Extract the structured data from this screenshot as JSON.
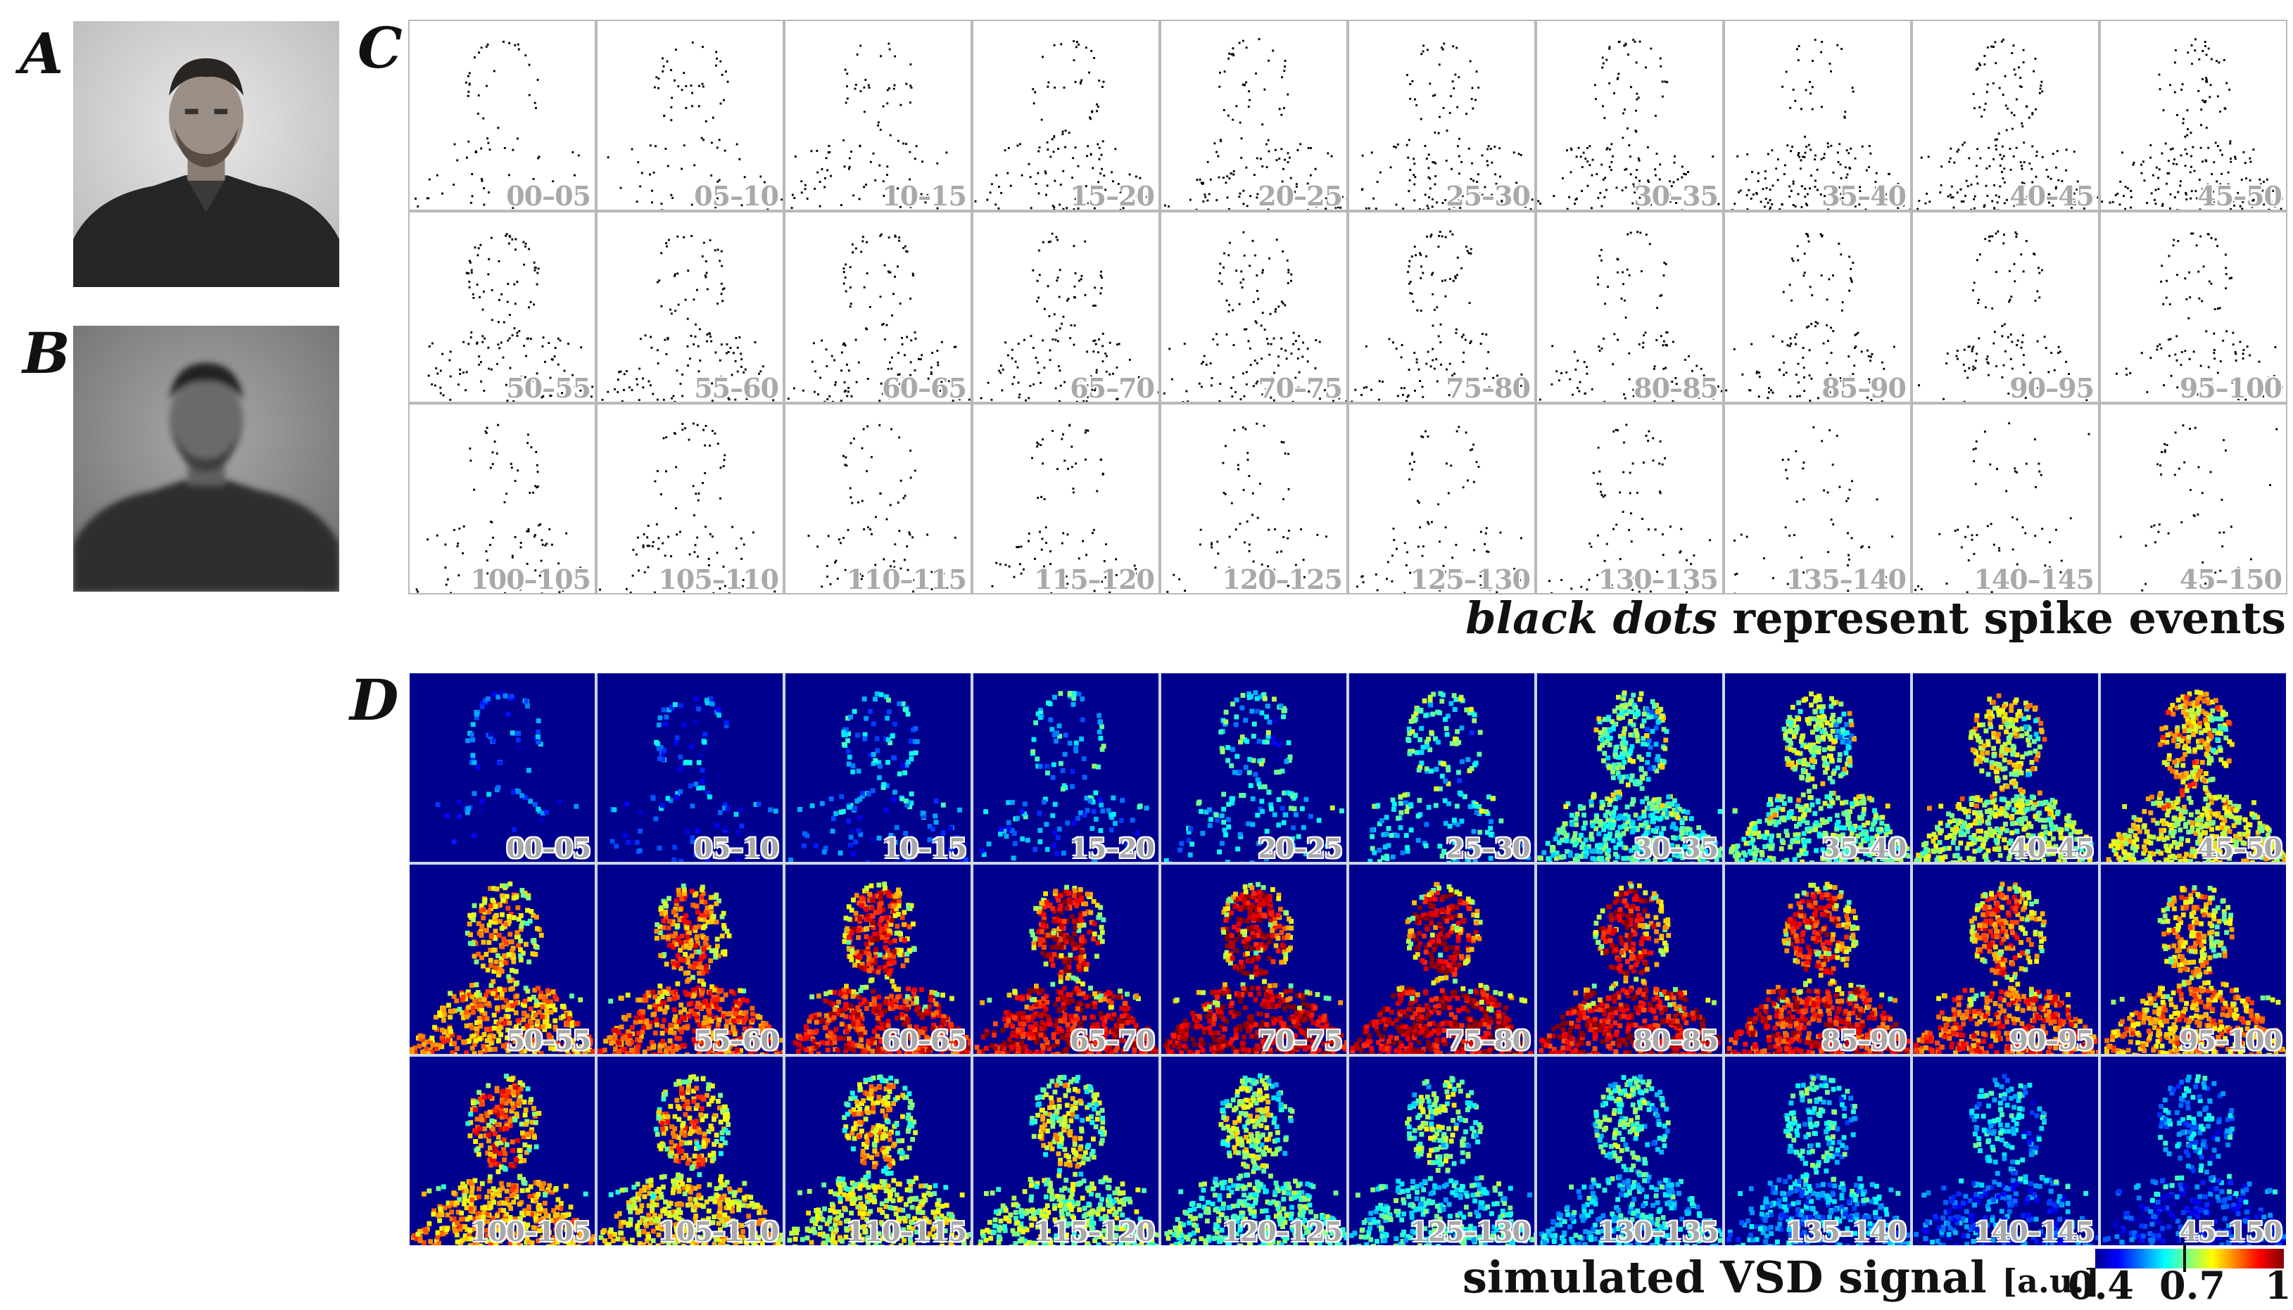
{
  "panel_labels": {
    "a": "A",
    "b": "B",
    "c": "C",
    "d": "D"
  },
  "panel_c": {
    "frame_labels": [
      "00–05",
      "05–10",
      "10–15",
      "15–20",
      "20–25",
      "25–30",
      "30–35",
      "35–40",
      "40–45",
      "45–50",
      "50–55",
      "55–60",
      "60–65",
      "65–70",
      "70–75",
      "75–80",
      "80–85",
      "85–90",
      "90–95",
      "95–100",
      "100–105",
      "105–110",
      "110–115",
      "115–120",
      "120–125",
      "125–130",
      "130–135",
      "135–140",
      "140–145",
      "45–150"
    ],
    "caption_italic": "black dots",
    "caption_rest": " represent spike events"
  },
  "panel_d": {
    "frame_labels": [
      "00–05",
      "05–10",
      "10–15",
      "15–20",
      "20–25",
      "25–30",
      "30–35",
      "35–40",
      "40–45",
      "45–50",
      "50–55",
      "55–60",
      "60–65",
      "65–70",
      "70–75",
      "75–80",
      "80–85",
      "85–90",
      "90–95",
      "95–100",
      "100–105",
      "105–110",
      "110–115",
      "115–120",
      "120–125",
      "125–130",
      "130–135",
      "135–140",
      "140–145",
      "45–150"
    ],
    "caption_main": "simulated VSD signal ",
    "caption_unit": "[a.u.]",
    "colorbar": {
      "min_label": "0.4",
      "mid_label": "0.7",
      "max_label": "1",
      "min": 0.4,
      "mid": 0.7,
      "max": 1
    }
  },
  "colors": {
    "spike": "#000000",
    "vsd_background": "#00008f",
    "frame_label": "#a9a9a9"
  }
}
